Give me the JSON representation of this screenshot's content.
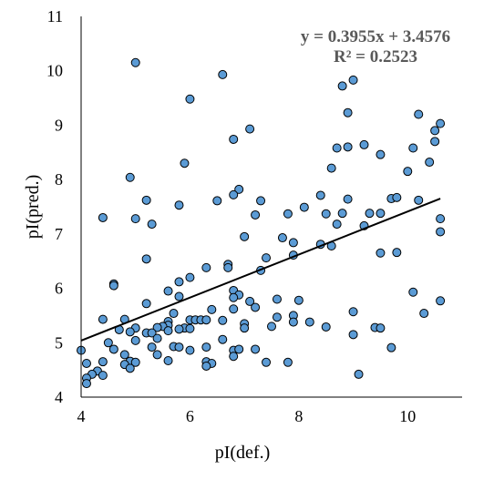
{
  "chart_data": {
    "type": "scatter",
    "xlabel": "pI(def.)",
    "ylabel": "pI(pred.)",
    "xlim": [
      4,
      11
    ],
    "ylim": [
      4,
      11
    ],
    "x_ticks": [
      "4",
      "6",
      "8",
      "10"
    ],
    "y_ticks": [
      "4",
      "5",
      "6",
      "7",
      "8",
      "9",
      "10",
      "11"
    ],
    "grid": false,
    "trendline": {
      "slope": 0.3955,
      "intercept": 3.4576,
      "x_range": [
        4.0,
        10.6
      ],
      "equation": "y = 0.3955x + 3.4576",
      "r_squared": "R² = 0.2523"
    },
    "points": [
      [
        5.0,
        10.15
      ],
      [
        6.6,
        9.93
      ],
      [
        6.0,
        9.48
      ],
      [
        8.8,
        9.72
      ],
      [
        9.0,
        9.83
      ],
      [
        8.9,
        9.23
      ],
      [
        10.2,
        9.2
      ],
      [
        10.6,
        9.03
      ],
      [
        7.1,
        8.93
      ],
      [
        6.8,
        8.74
      ],
      [
        10.5,
        8.9
      ],
      [
        10.5,
        8.7
      ],
      [
        8.7,
        8.58
      ],
      [
        8.9,
        8.6
      ],
      [
        9.2,
        8.64
      ],
      [
        10.1,
        8.58
      ],
      [
        9.5,
        8.46
      ],
      [
        10.4,
        8.32
      ],
      [
        5.9,
        8.3
      ],
      [
        8.6,
        8.21
      ],
      [
        10.0,
        8.15
      ],
      [
        4.9,
        8.04
      ],
      [
        6.9,
        7.82
      ],
      [
        6.8,
        7.72
      ],
      [
        8.4,
        7.71
      ],
      [
        9.7,
        7.65
      ],
      [
        9.8,
        7.67
      ],
      [
        8.9,
        7.64
      ],
      [
        10.2,
        7.62
      ],
      [
        5.2,
        7.62
      ],
      [
        6.5,
        7.61
      ],
      [
        7.3,
        7.61
      ],
      [
        5.8,
        7.53
      ],
      [
        8.1,
        7.49
      ],
      [
        8.5,
        7.37
      ],
      [
        8.8,
        7.38
      ],
      [
        9.3,
        7.38
      ],
      [
        9.5,
        7.38
      ],
      [
        7.8,
        7.37
      ],
      [
        7.2,
        7.35
      ],
      [
        4.4,
        7.3
      ],
      [
        5.0,
        7.28
      ],
      [
        10.6,
        7.28
      ],
      [
        5.3,
        7.18
      ],
      [
        8.7,
        7.18
      ],
      [
        9.2,
        7.15
      ],
      [
        10.6,
        7.04
      ],
      [
        7.0,
        6.95
      ],
      [
        7.7,
        6.93
      ],
      [
        7.9,
        6.84
      ],
      [
        8.4,
        6.81
      ],
      [
        8.6,
        6.78
      ],
      [
        9.5,
        6.65
      ],
      [
        9.8,
        6.66
      ],
      [
        7.9,
        6.61
      ],
      [
        7.4,
        6.56
      ],
      [
        5.2,
        6.54
      ],
      [
        6.7,
        6.44
      ],
      [
        6.7,
        6.38
      ],
      [
        6.3,
        6.38
      ],
      [
        7.3,
        6.33
      ],
      [
        6.0,
        6.2
      ],
      [
        5.8,
        6.12
      ],
      [
        4.6,
        6.08
      ],
      [
        4.6,
        6.05
      ],
      [
        5.6,
        5.95
      ],
      [
        6.8,
        5.96
      ],
      [
        10.1,
        5.93
      ],
      [
        6.9,
        5.88
      ],
      [
        5.8,
        5.85
      ],
      [
        6.8,
        5.83
      ],
      [
        7.6,
        5.8
      ],
      [
        8.0,
        5.78
      ],
      [
        7.1,
        5.76
      ],
      [
        10.6,
        5.77
      ],
      [
        5.2,
        5.72
      ],
      [
        7.2,
        5.65
      ],
      [
        6.8,
        5.62
      ],
      [
        6.4,
        5.61
      ],
      [
        9.0,
        5.57
      ],
      [
        5.7,
        5.54
      ],
      [
        10.3,
        5.54
      ],
      [
        7.6,
        5.47
      ],
      [
        7.9,
        5.5
      ],
      [
        4.4,
        5.43
      ],
      [
        4.8,
        5.43
      ],
      [
        6.0,
        5.42
      ],
      [
        6.1,
        5.42
      ],
      [
        6.2,
        5.42
      ],
      [
        6.3,
        5.42
      ],
      [
        6.6,
        5.41
      ],
      [
        5.6,
        5.39
      ],
      [
        7.9,
        5.38
      ],
      [
        8.2,
        5.38
      ],
      [
        7.0,
        5.35
      ],
      [
        5.6,
        5.32
      ],
      [
        5.5,
        5.3
      ],
      [
        5.4,
        5.28
      ],
      [
        5.0,
        5.27
      ],
      [
        5.9,
        5.27
      ],
      [
        6.0,
        5.26
      ],
      [
        7.0,
        5.27
      ],
      [
        7.5,
        5.3
      ],
      [
        8.5,
        5.29
      ],
      [
        9.4,
        5.28
      ],
      [
        9.5,
        5.27
      ],
      [
        5.6,
        5.22
      ],
      [
        4.7,
        5.24
      ],
      [
        4.9,
        5.2
      ],
      [
        5.2,
        5.18
      ],
      [
        5.3,
        5.18
      ],
      [
        5.8,
        5.25
      ],
      [
        9.0,
        5.15
      ],
      [
        5.4,
        5.08
      ],
      [
        6.6,
        5.06
      ],
      [
        5.0,
        5.04
      ],
      [
        6.3,
        4.92
      ],
      [
        4.5,
        5.0
      ],
      [
        4.6,
        4.88
      ],
      [
        5.7,
        4.93
      ],
      [
        5.8,
        4.92
      ],
      [
        5.3,
        4.92
      ],
      [
        7.2,
        4.88
      ],
      [
        6.0,
        4.86
      ],
      [
        6.8,
        4.86
      ],
      [
        6.9,
        4.88
      ],
      [
        9.7,
        4.91
      ],
      [
        4.0,
        4.86
      ],
      [
        4.8,
        4.78
      ],
      [
        5.4,
        4.78
      ],
      [
        6.8,
        4.75
      ],
      [
        4.1,
        4.62
      ],
      [
        4.4,
        4.65
      ],
      [
        4.9,
        4.66
      ],
      [
        5.0,
        4.64
      ],
      [
        5.6,
        4.67
      ],
      [
        6.3,
        4.65
      ],
      [
        6.4,
        4.62
      ],
      [
        7.4,
        4.64
      ],
      [
        7.8,
        4.64
      ],
      [
        4.8,
        4.6
      ],
      [
        6.3,
        4.57
      ],
      [
        4.9,
        4.53
      ],
      [
        4.3,
        4.48
      ],
      [
        4.2,
        4.42
      ],
      [
        4.4,
        4.4
      ],
      [
        4.1,
        4.35
      ],
      [
        4.1,
        4.25
      ],
      [
        9.1,
        4.42
      ]
    ]
  }
}
